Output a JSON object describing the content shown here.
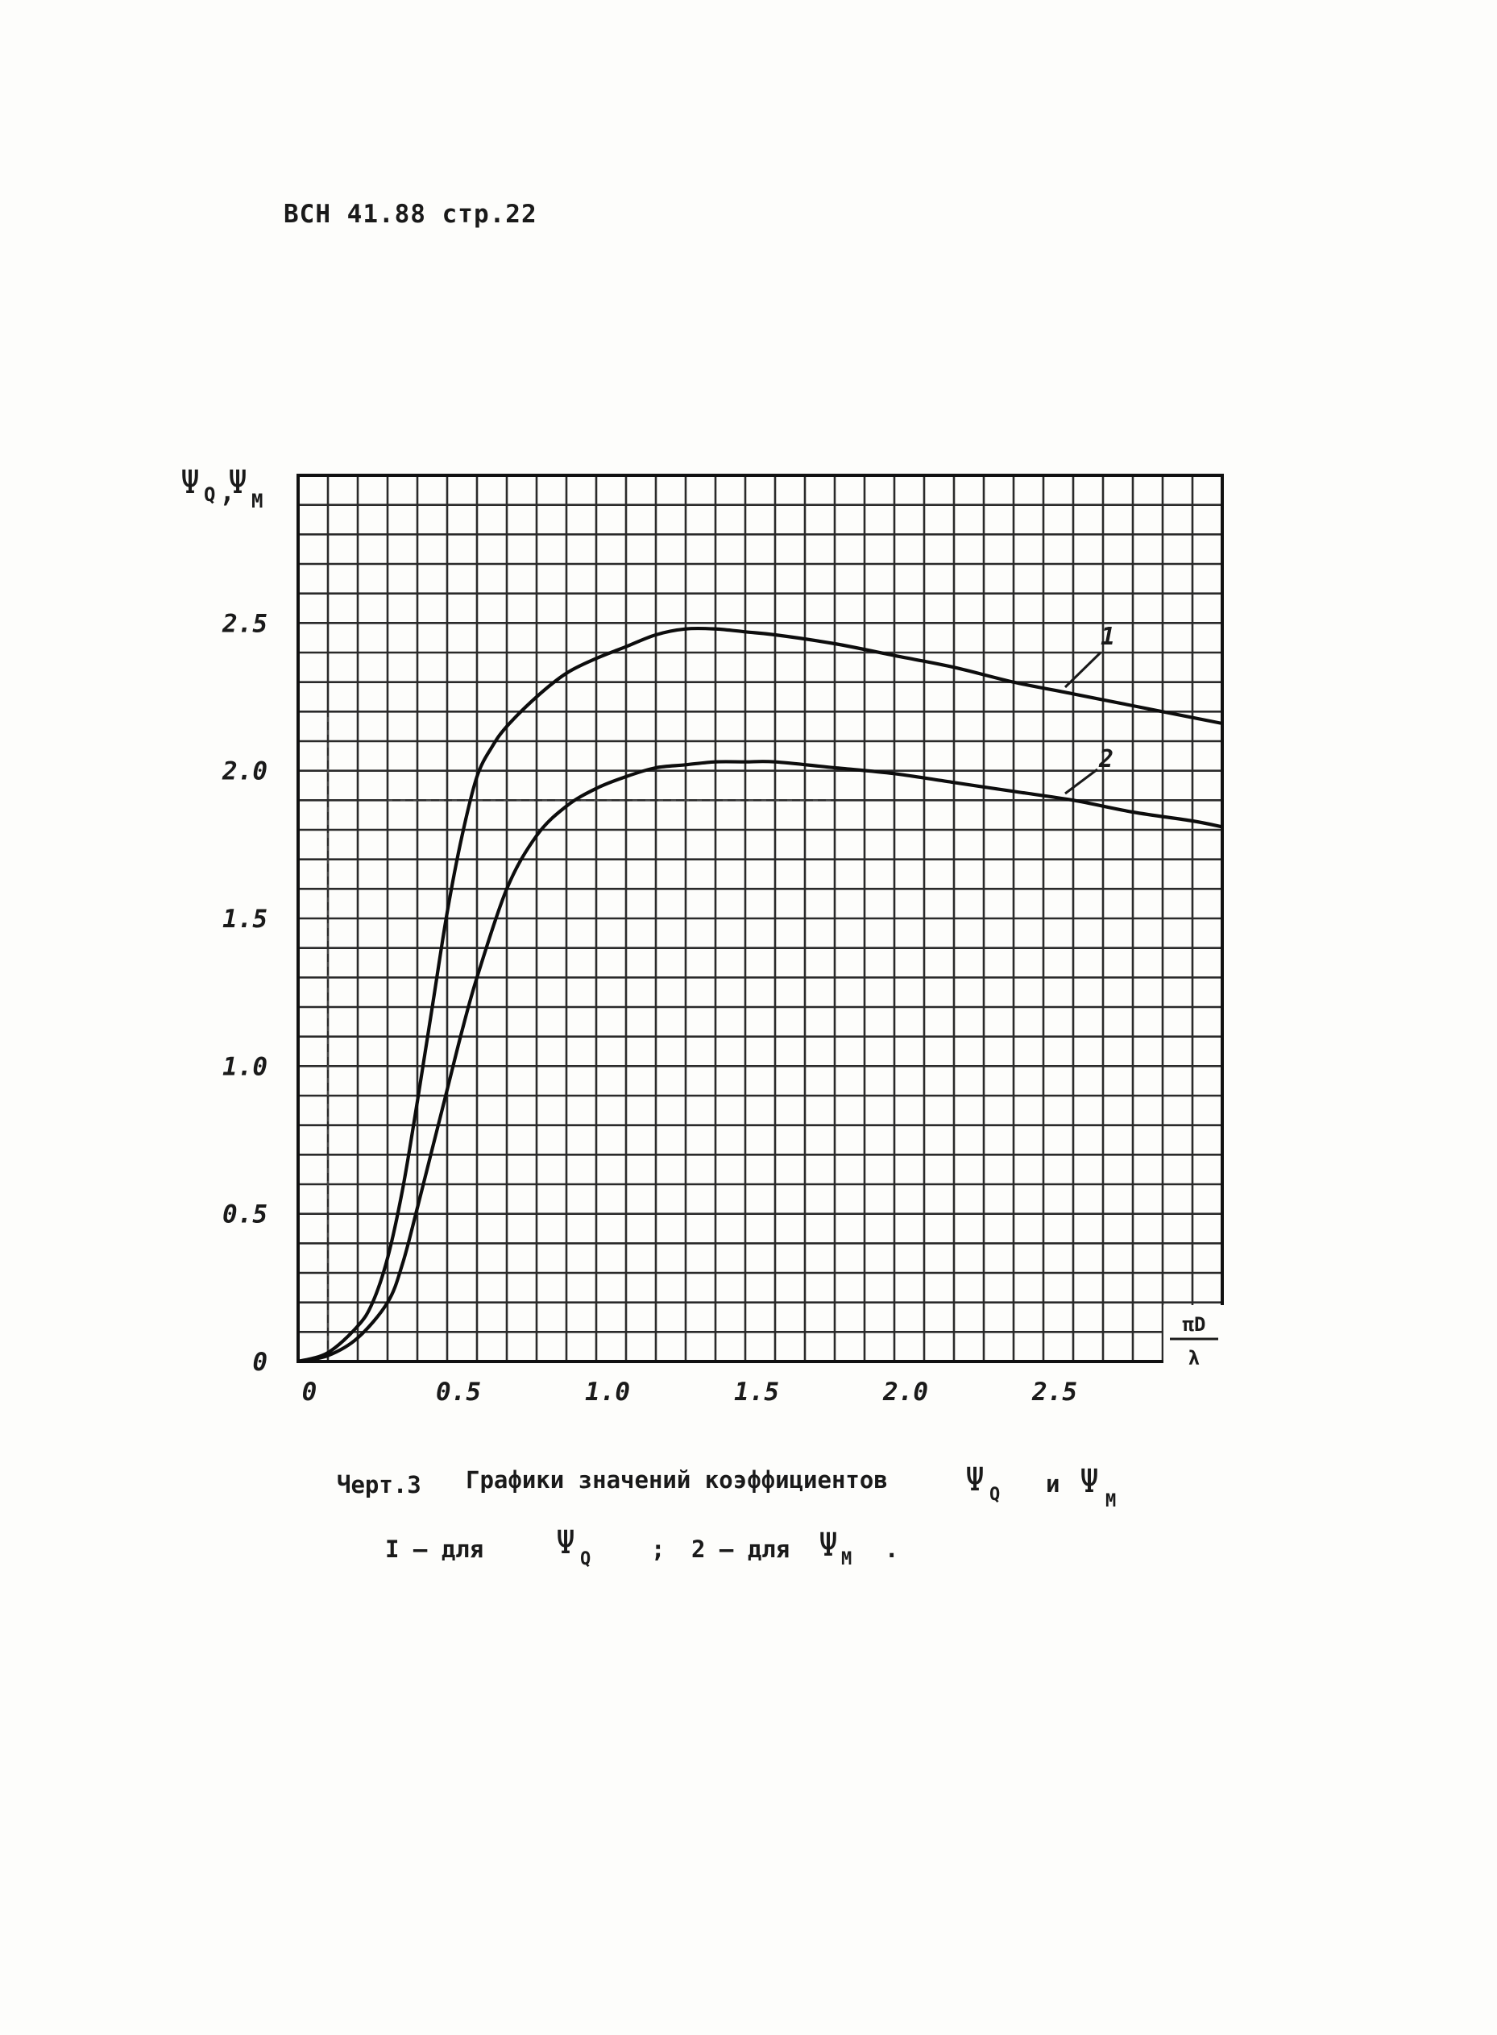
{
  "document": {
    "header": "ВСН 41.88 стр.22"
  },
  "caption": {
    "line1_prefix": "Черт.3",
    "line1_text": "Графики значений коэффициентов",
    "line1_psi_a": "Ψ",
    "line1_sub_a": "Q",
    "line1_and": "и",
    "line1_psi_b": "Ψ",
    "line1_sub_b": "M",
    "line2_num1": "I – для",
    "line2_psi1": "Ψ",
    "line2_sub1": "Q",
    "line2_sep": ";",
    "line2_num2": "2 – для",
    "line2_psi2": "Ψ",
    "line2_sub2": "M",
    "line2_end": "."
  },
  "chart_data": {
    "type": "line",
    "title": "",
    "ylabel": {
      "psi": "Ψ",
      "sub_a": "Q",
      "comma": ",",
      "sub_b": "M"
    },
    "xlabel": {
      "numerator": "πD",
      "denominator": "λ"
    },
    "xlim": [
      0,
      3.1
    ],
    "ylim": [
      0,
      3.0
    ],
    "x_ticks": [
      {
        "value": 0,
        "label": "0"
      },
      {
        "value": 0.5,
        "label": "0.5"
      },
      {
        "value": 1.0,
        "label": "1.0"
      },
      {
        "value": 1.5,
        "label": "1.5"
      },
      {
        "value": 2.0,
        "label": "2.0"
      },
      {
        "value": 2.5,
        "label": "2.5"
      }
    ],
    "y_ticks": [
      {
        "value": 0,
        "label": "0"
      },
      {
        "value": 0.5,
        "label": "0.5"
      },
      {
        "value": 1.0,
        "label": "1.0"
      },
      {
        "value": 1.5,
        "label": "1.5"
      },
      {
        "value": 2.0,
        "label": "2.0"
      },
      {
        "value": 2.5,
        "label": "2.5"
      }
    ],
    "grid": true,
    "grid_step_x": 0.1,
    "grid_step_y": 0.1,
    "series": [
      {
        "name": "1",
        "x": [
          0,
          0.1,
          0.2,
          0.25,
          0.3,
          0.35,
          0.4,
          0.45,
          0.5,
          0.55,
          0.6,
          0.65,
          0.7,
          0.8,
          0.9,
          1.0,
          1.1,
          1.2,
          1.3,
          1.4,
          1.5,
          1.6,
          1.8,
          2.0,
          2.2,
          2.4,
          2.6,
          2.8,
          3.0,
          3.1
        ],
        "y": [
          0,
          0.03,
          0.12,
          0.2,
          0.35,
          0.58,
          0.88,
          1.2,
          1.52,
          1.78,
          1.98,
          2.08,
          2.15,
          2.25,
          2.33,
          2.38,
          2.42,
          2.46,
          2.48,
          2.48,
          2.47,
          2.46,
          2.43,
          2.39,
          2.35,
          2.3,
          2.26,
          2.22,
          2.18,
          2.16
        ]
      },
      {
        "name": "2",
        "x": [
          0,
          0.1,
          0.2,
          0.3,
          0.35,
          0.4,
          0.45,
          0.5,
          0.55,
          0.6,
          0.7,
          0.8,
          0.9,
          1.0,
          1.1,
          1.2,
          1.3,
          1.4,
          1.5,
          1.6,
          1.8,
          2.0,
          2.2,
          2.4,
          2.6,
          2.8,
          3.0,
          3.1
        ],
        "y": [
          0,
          0.02,
          0.08,
          0.2,
          0.33,
          0.52,
          0.72,
          0.92,
          1.12,
          1.3,
          1.6,
          1.78,
          1.88,
          1.94,
          1.98,
          2.01,
          2.02,
          2.03,
          2.03,
          2.03,
          2.01,
          1.99,
          1.96,
          1.93,
          1.9,
          1.86,
          1.83,
          1.81
        ]
      }
    ]
  }
}
